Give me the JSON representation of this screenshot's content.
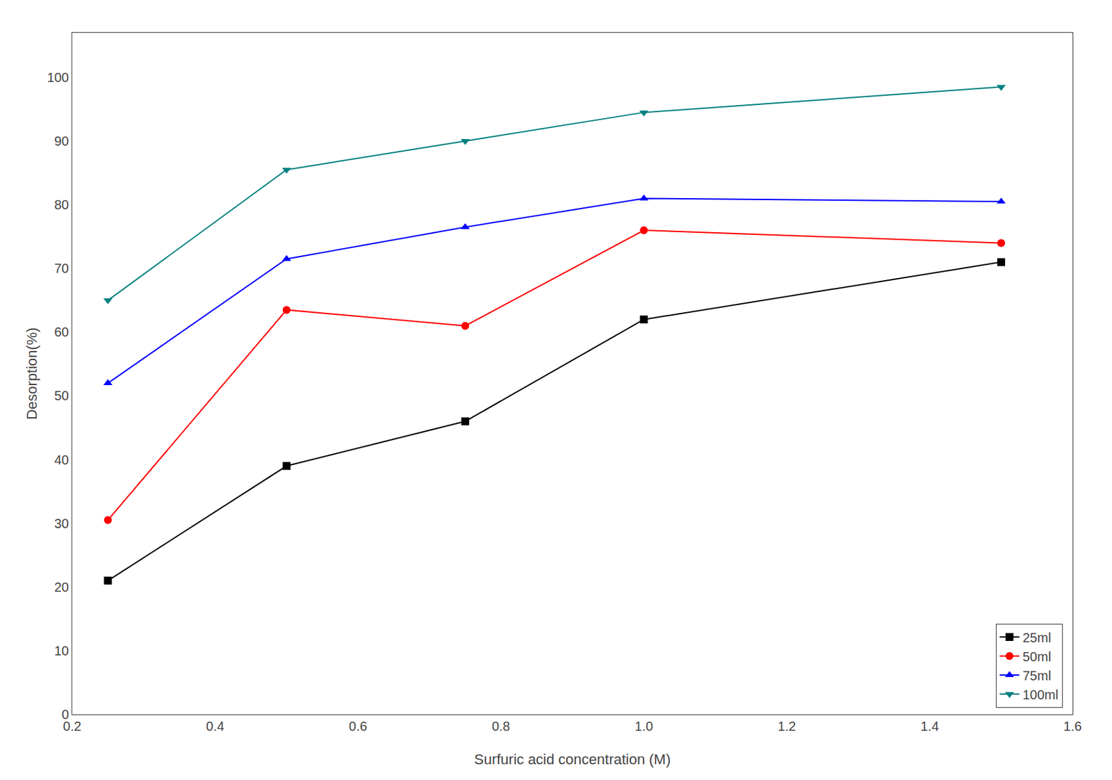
{
  "chart_data": {
    "type": "line",
    "x": [
      0.25,
      0.5,
      0.75,
      1.0,
      1.5
    ],
    "series": [
      {
        "name": "25ml",
        "color": "#000000",
        "marker": "square",
        "line_style": "solid",
        "values": [
          21,
          39,
          46,
          62,
          71
        ]
      },
      {
        "name": "50ml",
        "color": "#ff0000",
        "marker": "circle",
        "line_style": "solid",
        "values": [
          30.5,
          63.5,
          61,
          76,
          74
        ]
      },
      {
        "name": "75ml",
        "color": "#0000ff",
        "marker": "triangle-up",
        "line_style": "solid",
        "values": [
          52,
          71.5,
          76.5,
          81,
          80.5
        ]
      },
      {
        "name": "100ml",
        "color": "#008080",
        "marker": "triangle-down",
        "line_style": "solid",
        "values": [
          65,
          85.5,
          90,
          94.5,
          98.5
        ]
      }
    ],
    "xlabel": "Surfuric acid concentration (M)",
    "ylabel": "Desorption(%)",
    "xlim": [
      0.2,
      1.6
    ],
    "ylim": [
      0,
      107
    ],
    "xticks": [
      0.2,
      0.4,
      0.6,
      0.8,
      {
        "value": 1.0,
        "label": "1.0"
      },
      1.2,
      1.4,
      1.6
    ],
    "yticks": [
      0,
      10,
      20,
      30,
      40,
      50,
      60,
      70,
      80,
      90,
      100
    ],
    "grid": false,
    "legend": "lower right"
  }
}
